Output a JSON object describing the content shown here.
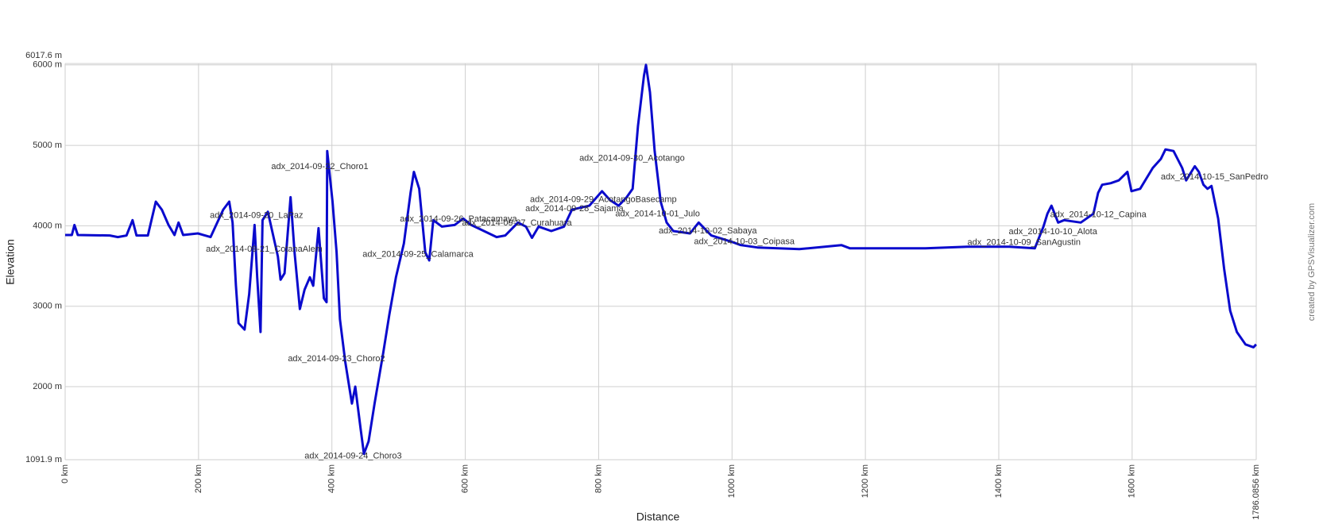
{
  "chart_data": {
    "type": "line",
    "xlabel": "Distance",
    "ylabel": "Elevation",
    "credit": "created by GPSVisualizer.com",
    "color": "#0a0acd",
    "grid": true,
    "xlim": [
      0,
      1786.0856
    ],
    "ylim": [
      1091.9,
      6017.6
    ],
    "xticks": [
      {
        "value": 0,
        "label": "0 km"
      },
      {
        "value": 200,
        "label": "200 km"
      },
      {
        "value": 400,
        "label": "400 km"
      },
      {
        "value": 600,
        "label": "600 km"
      },
      {
        "value": 800,
        "label": "800 km"
      },
      {
        "value": 1000,
        "label": "1000 km"
      },
      {
        "value": 1200,
        "label": "1200 km"
      },
      {
        "value": 1400,
        "label": "1400 km"
      },
      {
        "value": 1600,
        "label": "1600 km"
      },
      {
        "value": 1786.0856,
        "label": "1786.0856 km"
      }
    ],
    "yticks": [
      {
        "value": 1091.9,
        "label": "1091.9 m"
      },
      {
        "value": 2000,
        "label": "2000 m"
      },
      {
        "value": 3000,
        "label": "3000 m"
      },
      {
        "value": 4000,
        "label": "4000 m"
      },
      {
        "value": 5000,
        "label": "5000 m"
      },
      {
        "value": 6000,
        "label": "6000 m"
      },
      {
        "value": 6017.6,
        "label": "6017.6 m"
      }
    ],
    "x": [
      0,
      10,
      14,
      19,
      67,
      79,
      92,
      101,
      107,
      124,
      136,
      145,
      155,
      164,
      170,
      177,
      199,
      218,
      237,
      246,
      251,
      256,
      260,
      269,
      276,
      284,
      288,
      293,
      296,
      304,
      319,
      323,
      329,
      338,
      344,
      352,
      359,
      367,
      372,
      380,
      388,
      392,
      393,
      401,
      407,
      412,
      420,
      426,
      430,
      435,
      443,
      448,
      455,
      464,
      477,
      486,
      496,
      508,
      518,
      523,
      531,
      540,
      546,
      552,
      565,
      584,
      597,
      609,
      628,
      647,
      660,
      679,
      691,
      700,
      710,
      729,
      748,
      760,
      786,
      805,
      817,
      830,
      842,
      851,
      859,
      868,
      871,
      877,
      884,
      893,
      902,
      912,
      937,
      950,
      969,
      988,
      1000,
      1013,
      1038,
      1101,
      1164,
      1177,
      1290,
      1353,
      1416,
      1454,
      1467,
      1473,
      1479,
      1489,
      1498,
      1523,
      1542,
      1549,
      1555,
      1568,
      1580,
      1593,
      1599,
      1612,
      1631,
      1643,
      1650,
      1662,
      1675,
      1681,
      1694,
      1700,
      1707,
      1713,
      1719,
      1729,
      1738,
      1747,
      1757,
      1770,
      1782,
      1786
    ],
    "values": [
      3885,
      3885,
      4010,
      3885,
      3880,
      3860,
      3880,
      4070,
      3880,
      3880,
      4300,
      4200,
      4010,
      3885,
      4040,
      3885,
      3905,
      3860,
      4200,
      4300,
      4040,
      3260,
      2790,
      2710,
      3150,
      4010,
      3360,
      2680,
      4070,
      4175,
      3620,
      3330,
      3410,
      4355,
      3670,
      2965,
      3205,
      3360,
      3255,
      3970,
      3100,
      3050,
      4930,
      4300,
      3670,
      2840,
      2310,
      2000,
      1790,
      2000,
      1480,
      1165,
      1320,
      1790,
      2420,
      2890,
      3360,
      3780,
      4410,
      4670,
      4460,
      3670,
      3570,
      4070,
      3990,
      4010,
      4090,
      4010,
      3935,
      3860,
      3880,
      4040,
      3990,
      3850,
      3990,
      3935,
      3990,
      4200,
      4250,
      4430,
      4320,
      4250,
      4355,
      4460,
      5240,
      5870,
      6000,
      5660,
      4930,
      4300,
      4040,
      3935,
      3905,
      4040,
      3880,
      3830,
      3800,
      3760,
      3730,
      3710,
      3760,
      3720,
      3720,
      3740,
      3740,
      3720,
      3990,
      4150,
      4250,
      4040,
      4070,
      4040,
      4150,
      4410,
      4510,
      4530,
      4565,
      4670,
      4430,
      4460,
      4720,
      4830,
      4950,
      4930,
      4720,
      4565,
      4740,
      4670,
      4510,
      4460,
      4495,
      4090,
      3465,
      2945,
      2680,
      2525,
      2490,
      2525
    ],
    "annotations": [
      {
        "text": "adx_2014-09-22_Choro1",
        "x": 309,
        "y": 4731
      },
      {
        "text": "adx_2014-09-20_LaPaz",
        "x": 217,
        "y": 4124
      },
      {
        "text": "adx_2014-09-21_CotanaAlem",
        "x": 211,
        "y": 3706
      },
      {
        "text": "adx_2014-09-23_Choro2",
        "x": 334,
        "y": 2347
      },
      {
        "text": "adx_2014-09-24_Choro3",
        "x": 359,
        "y": 1134
      },
      {
        "text": "adx_2014-09-25_Calamarca",
        "x": 446,
        "y": 3644
      },
      {
        "text": "adx_2014-09-26_Patacamaya",
        "x": 502,
        "y": 4083
      },
      {
        "text": "adx_2014-09-27_Curahuara",
        "x": 595,
        "y": 4031
      },
      {
        "text": "adx_2014-09-28_Sajama",
        "x": 690,
        "y": 4208
      },
      {
        "text": "adx_2014-09-29_AcotangoBasecamp",
        "x": 697,
        "y": 4323
      },
      {
        "text": "adx_2014-09-30_Acotango",
        "x": 771,
        "y": 4836
      },
      {
        "text": "adx_2014-10-01_Julo",
        "x": 825,
        "y": 4146
      },
      {
        "text": "adx_2014-10-02_Sabaya",
        "x": 890,
        "y": 3936
      },
      {
        "text": "adx_2014-10-03_Coipasa",
        "x": 943,
        "y": 3800
      },
      {
        "text": "adx_2014-10-09_SanAgustin",
        "x": 1353,
        "y": 3790
      },
      {
        "text": "adx_2014-10-10_Alota",
        "x": 1415,
        "y": 3926
      },
      {
        "text": "adx_2014-10-12_Capina",
        "x": 1477,
        "y": 4135
      },
      {
        "text": "adx_2014-10-15_SanPedro",
        "x": 1643,
        "y": 4605
      }
    ]
  }
}
